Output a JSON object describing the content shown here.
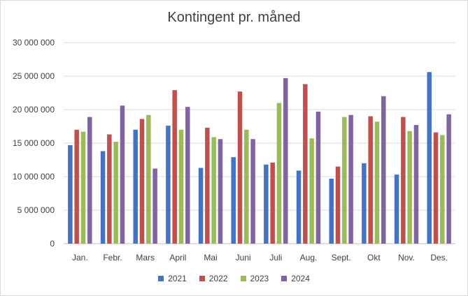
{
  "chart_data": {
    "type": "bar",
    "title": "Kontingent pr. måned",
    "xlabel": "",
    "ylabel": "",
    "categories": [
      "Jan.",
      "Febr.",
      "Mars",
      "April",
      "Mai",
      "Juni",
      "Juli",
      "Aug.",
      "Sept.",
      "Okt",
      "Nov.",
      "Des."
    ],
    "ylim": [
      0,
      30000000
    ],
    "yticks": [
      0,
      5000000,
      10000000,
      15000000,
      20000000,
      25000000,
      30000000
    ],
    "ytick_labels": [
      "0",
      "5 000 000",
      "10 000 000",
      "15 000 000",
      "20 000 000",
      "25 000 000",
      "30 000 000"
    ],
    "grid": true,
    "legend_position": "bottom",
    "series": [
      {
        "name": "2021",
        "color": "#4472c4",
        "values": [
          14700000,
          13800000,
          17000000,
          17600000,
          11300000,
          12900000,
          11800000,
          10900000,
          9700000,
          12000000,
          10300000,
          25600000
        ]
      },
      {
        "name": "2022",
        "color": "#c0504d",
        "values": [
          17000000,
          16300000,
          18600000,
          22900000,
          17300000,
          22700000,
          12100000,
          23800000,
          11500000,
          19000000,
          18900000,
          16600000
        ]
      },
      {
        "name": "2023",
        "color": "#9bbb59",
        "values": [
          16700000,
          15200000,
          19200000,
          17000000,
          15900000,
          17000000,
          21000000,
          15700000,
          18900000,
          18200000,
          16800000,
          16200000
        ]
      },
      {
        "name": "2024",
        "color": "#8064a2",
        "values": [
          18900000,
          20600000,
          11200000,
          20400000,
          15600000,
          15600000,
          24700000,
          19700000,
          19200000,
          22000000,
          17700000,
          19300000
        ]
      }
    ]
  }
}
